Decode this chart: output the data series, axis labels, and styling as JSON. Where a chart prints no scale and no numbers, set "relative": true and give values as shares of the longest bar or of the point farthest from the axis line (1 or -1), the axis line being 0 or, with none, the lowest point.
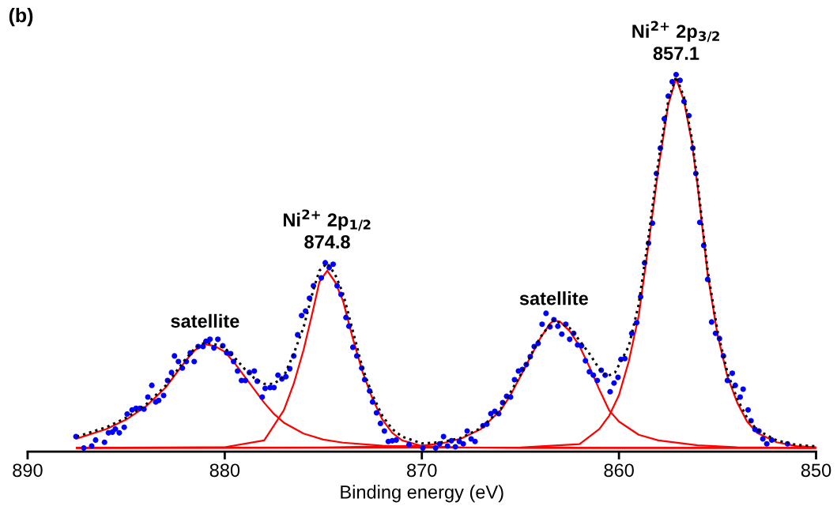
{
  "chart_data": {
    "type": "scatter",
    "relative": true,
    "xlabel": "Binding energy (eV)",
    "xlim": [
      890,
      850
    ],
    "xticks": [
      890,
      880,
      870,
      860,
      850
    ],
    "tick_labels": "x",
    "grid": false,
    "legend": false,
    "annotations": [
      "(b)",
      {
        "text": "satellite",
        "x": 881,
        "y": 0.29
      },
      {
        "text": "Ni$^{2+}$ 2p$_{1/2}$\n874.8",
        "x": 874.8,
        "y": 0.5
      },
      {
        "text": "satellite",
        "x": 863.3,
        "y": 0.35
      },
      {
        "text": "Ni$^{2+}$ 2p$_{3/2}$\n857.1",
        "x": 857.1,
        "y": 1.0
      }
    ],
    "series": [
      {
        "type": "scatter",
        "marker": "circle",
        "color": "#0000ff",
        "x": [
          887.55,
          887.15,
          886.75,
          886.55,
          886.1,
          885.9,
          885.7,
          885.55,
          885.35,
          885.1,
          884.95,
          884.7,
          884.5,
          884.3,
          884.1,
          883.9,
          883.7,
          883.5,
          883.35,
          883.1,
          882.9,
          882.7,
          882.55,
          882.35,
          882.15,
          881.95,
          881.75,
          881.55,
          881.35,
          881.1,
          880.95,
          880.75,
          880.55,
          880.35,
          880.1,
          879.9,
          879.7,
          879.55,
          879.35,
          879.15,
          878.95,
          878.75,
          878.5,
          878.35,
          878.1,
          877.95,
          877.7,
          877.5,
          877.3,
          877.1,
          876.9,
          876.7,
          876.5,
          876.3,
          876.1,
          875.9,
          875.7,
          875.5,
          875.1,
          874.9,
          874.7,
          874.5,
          874.3,
          874.1,
          873.85,
          873.7,
          873.5,
          873.3,
          873.05,
          872.9,
          872.65,
          872.5,
          872.3,
          872.1,
          871.9,
          871.7,
          871.5,
          871.3,
          870.65,
          869.95,
          869.3,
          869.1,
          868.9,
          868.7,
          868.5,
          868.3,
          868.1,
          867.9,
          867.7,
          867.5,
          867.3,
          866.9,
          866.7,
          866.5,
          866.3,
          866.1,
          865.9,
          865.7,
          865.5,
          865.3,
          865.1,
          864.9,
          864.7,
          864.5,
          864.3,
          864.1,
          863.9,
          863.7,
          863.5,
          863.3,
          863.1,
          862.9,
          862.7,
          862.5,
          862.3,
          862.1,
          861.9,
          861.7,
          861.5,
          861.3,
          861.1,
          860.9,
          860.7,
          860.45,
          860.25,
          860.05,
          859.9,
          859.7,
          859.35,
          859.1,
          858.9,
          858.7,
          858.5,
          858.3,
          858.1,
          857.9,
          857.7,
          857.5,
          857.3,
          857.1,
          856.9,
          856.7,
          856.45,
          856.25,
          856.1,
          855.9,
          855.7,
          855.5,
          855.3,
          855.1,
          854.9,
          854.7,
          854.5,
          854.25,
          854.1,
          853.85,
          853.7,
          853.45,
          853.3,
          853.1,
          852.9,
          852.7,
          852.5,
          852.25,
          851.45
        ],
        "values": [
          0.04,
          0.01,
          0.015,
          0.031,
          0.025,
          0.05,
          0.052,
          0.06,
          0.05,
          0.065,
          0.1,
          0.111,
          0.115,
          0.115,
          0.113,
          0.145,
          0.176,
          0.132,
          0.136,
          0.149,
          0.189,
          0.21,
          0.254,
          0.239,
          0.222,
          0.239,
          0.262,
          0.239,
          0.279,
          0.279,
          0.293,
          0.298,
          0.275,
          0.298,
          0.281,
          0.262,
          0.26,
          0.239,
          0.214,
          0.189,
          0.189,
          0.21,
          0.214,
          0.187,
          0.145,
          0.168,
          0.17,
          0.17,
          0.203,
          0.193,
          0.199,
          0.22,
          0.254,
          0.31,
          0.361,
          0.373,
          0.407,
          0.44,
          0.461,
          0.501,
          0.488,
          0.497,
          0.44,
          0.417,
          0.356,
          0.333,
          0.277,
          0.254,
          0.222,
          0.191,
          0.161,
          0.132,
          0.103,
          0.075,
          0.055,
          0.027,
          0.029,
          0.031,
          0.019,
          0.01,
          0.01,
          0.021,
          0.04,
          0.015,
          0.029,
          0.013,
          0.027,
          0.021,
          0.055,
          0.034,
          0.027,
          0.069,
          0.073,
          0.101,
          0.107,
          0.101,
          0.13,
          0.147,
          0.145,
          0.191,
          0.214,
          0.218,
          0.231,
          0.252,
          0.279,
          0.287,
          0.338,
          0.367,
          0.331,
          0.35,
          0.333,
          0.312,
          0.338,
          0.298,
          0.314,
          0.283,
          0.281,
          0.241,
          0.212,
          0.203,
          0.189,
          0.216,
          0.203,
          0.159,
          0.182,
          0.197,
          0.245,
          0.247,
          0.314,
          0.342,
          0.411,
          0.501,
          0.553,
          0.606,
          0.738,
          0.805,
          0.883,
          0.943,
          0.981,
          1.0,
          0.985,
          0.929,
          0.891,
          0.805,
          0.738,
          0.608,
          0.547,
          0.457,
          0.344,
          0.314,
          0.3,
          0.254,
          0.189,
          0.208,
          0.176,
          0.145,
          0.166,
          0.111,
          0.082,
          0.059,
          0.055,
          0.034,
          0.021,
          0.031,
          0.021
        ]
      },
      {
        "type": "line",
        "line_style": "solid",
        "color": "#ff0000",
        "x": [
          887.5,
          886,
          885,
          884,
          883,
          882.5,
          882,
          881.5,
          881,
          880.5,
          880,
          879.5,
          879,
          878.5,
          878,
          877.5,
          877,
          876,
          875,
          874,
          872,
          870,
          865,
          860,
          850
        ],
        "values": [
          0.035,
          0.06,
          0.085,
          0.12,
          0.17,
          0.205,
          0.24,
          0.27,
          0.285,
          0.28,
          0.265,
          0.235,
          0.2,
          0.165,
          0.13,
          0.1,
          0.077,
          0.048,
          0.032,
          0.024,
          0.016,
          0.012,
          0.01,
          0.01,
          0.01
        ]
      },
      {
        "type": "line",
        "line_style": "solid",
        "color": "#ff0000",
        "x": [
          887.5,
          880,
          878,
          877.5,
          877,
          876.5,
          876,
          875.5,
          875.2,
          874.8,
          874.4,
          874,
          873.5,
          873,
          872.5,
          872,
          871.5,
          871,
          870,
          868,
          860,
          850
        ],
        "values": [
          0.01,
          0.012,
          0.03,
          0.07,
          0.11,
          0.18,
          0.27,
          0.38,
          0.45,
          0.48,
          0.45,
          0.4,
          0.3,
          0.21,
          0.14,
          0.085,
          0.05,
          0.03,
          0.015,
          0.011,
          0.01,
          0.01
        ]
      },
      {
        "type": "line",
        "line_style": "solid",
        "color": "#ff0000",
        "x": [
          887.5,
          875,
          870,
          869,
          868,
          867,
          866,
          865.5,
          865,
          864.5,
          864,
          863.5,
          863.3,
          863,
          862.5,
          862,
          861.5,
          861,
          860.5,
          860,
          859,
          858,
          856,
          854,
          850
        ],
        "values": [
          0.01,
          0.011,
          0.016,
          0.022,
          0.035,
          0.06,
          0.11,
          0.15,
          0.2,
          0.25,
          0.3,
          0.34,
          0.348,
          0.345,
          0.32,
          0.28,
          0.225,
          0.165,
          0.11,
          0.08,
          0.045,
          0.03,
          0.017,
          0.012,
          0.01
        ]
      },
      {
        "type": "line",
        "line_style": "solid",
        "color": "#ff0000",
        "x": [
          887.5,
          865,
          862,
          861.5,
          861,
          860.5,
          860,
          859.5,
          859,
          858.5,
          858,
          857.5,
          857.1,
          856.7,
          856.3,
          856,
          855.5,
          855,
          854.5,
          854,
          853.5,
          853,
          852,
          851,
          850
        ],
        "values": [
          0.01,
          0.011,
          0.02,
          0.04,
          0.06,
          0.095,
          0.15,
          0.24,
          0.36,
          0.55,
          0.75,
          0.92,
          0.99,
          0.93,
          0.82,
          0.7,
          0.47,
          0.31,
          0.2,
          0.13,
          0.08,
          0.05,
          0.025,
          0.015,
          0.012
        ]
      },
      {
        "type": "line",
        "line_style": "dotted",
        "color": "#000000",
        "x": [
          887.5,
          886,
          885,
          884,
          883,
          882,
          881.5,
          881,
          880.5,
          880,
          879.5,
          879,
          878.5,
          878,
          877.5,
          877,
          876.5,
          876,
          875.5,
          875.2,
          874.8,
          874.4,
          874,
          873.5,
          873,
          872.5,
          872,
          871.5,
          871,
          870,
          869,
          868,
          867,
          866,
          865,
          864,
          863.3,
          862.5,
          862,
          861.5,
          861,
          860.6,
          860.2,
          859.8,
          859.5,
          859,
          858.5,
          858,
          857.5,
          857.1,
          856.7,
          856.3,
          856,
          855.5,
          855,
          854.5,
          854,
          853.5,
          853,
          852,
          851,
          850
        ],
        "values": [
          0.04,
          0.065,
          0.09,
          0.125,
          0.175,
          0.245,
          0.275,
          0.29,
          0.285,
          0.275,
          0.25,
          0.22,
          0.195,
          0.18,
          0.18,
          0.2,
          0.26,
          0.33,
          0.43,
          0.48,
          0.5,
          0.47,
          0.42,
          0.32,
          0.22,
          0.15,
          0.095,
          0.06,
          0.04,
          0.022,
          0.025,
          0.037,
          0.063,
          0.113,
          0.203,
          0.303,
          0.35,
          0.328,
          0.295,
          0.26,
          0.22,
          0.2,
          0.21,
          0.25,
          0.28,
          0.39,
          0.57,
          0.77,
          0.93,
          0.995,
          0.94,
          0.83,
          0.71,
          0.48,
          0.32,
          0.21,
          0.14,
          0.09,
          0.058,
          0.03,
          0.018,
          0.014
        ]
      }
    ]
  }
}
